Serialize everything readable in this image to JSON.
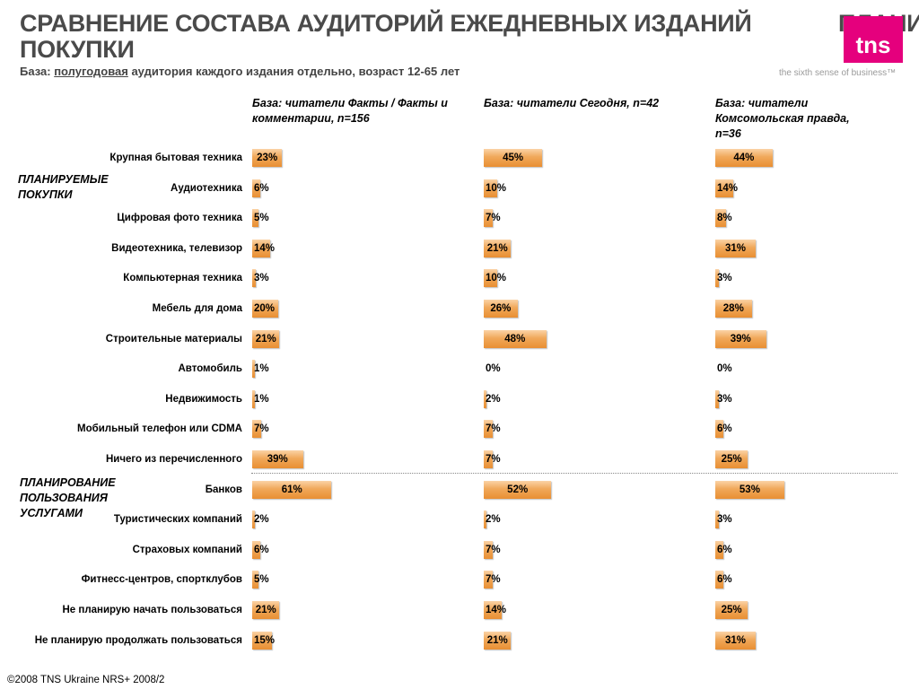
{
  "header": {
    "title_line1": "СРАВНЕНИЕ СОСТАВА АУДИТОРИЙ ЕЖЕДНЕВНЫХ ИЗДАНИЙ",
    "title_line1_right": "ПЛАНИ",
    "title_line2": "ПОКУПКИ",
    "subtitle_prefix": "База: ",
    "subtitle_underlined": "полугодовая",
    "subtitle_rest": " аудитория каждого издания отдельно, возраст 12-65 лет",
    "logo_text": "tns",
    "tagline": "the sixth sense of business™"
  },
  "groups": {
    "planned_purchases": "ПЛАНИРУЕМЫЕ ПОКУПКИ",
    "planned_services": "ПЛАНИРОВАНИЕ ПОЛЬЗОВАНИЯ УСЛУГАМИ"
  },
  "footer": "©2008 TNS Ukraine  NRS+ 2008/2",
  "colors": {
    "bar": "#f0a85a",
    "logo": "#e5007d",
    "title": "#4a4a4a"
  },
  "chart_data": {
    "type": "bar",
    "orientation": "horizontal",
    "categories": [
      "Крупная бытовая техника",
      "Аудиотехника",
      "Цифровая фото техника",
      "Видеотехника, телевизор",
      "Компьютерная техника",
      "Мебель для дома",
      "Строительные материалы",
      "Автомобиль",
      "Недвижимость",
      "Мобильный телефон или CDMA",
      "Ничего из перечисленного",
      "Банков",
      "Туристических компаний",
      "Страховых компаний",
      "Фитнесс-центров, спортклубов",
      "Не планирую начать пользоваться",
      "Не планирую продолжать пользоваться"
    ],
    "series": [
      {
        "name": "База: читатели Факты / Факты и комментарии, n=156",
        "values": [
          23,
          6,
          5,
          14,
          3,
          20,
          21,
          1,
          1,
          7,
          39,
          61,
          2,
          6,
          5,
          21,
          15
        ]
      },
      {
        "name": "База: читатели Сегодня, n=42",
        "values": [
          45,
          10,
          7,
          21,
          10,
          26,
          48,
          0,
          2,
          7,
          7,
          52,
          2,
          7,
          7,
          14,
          21
        ]
      },
      {
        "name": "База: читатели Комсомольская правда, n=36",
        "values": [
          44,
          14,
          8,
          31,
          3,
          28,
          39,
          0,
          3,
          6,
          25,
          53,
          3,
          6,
          6,
          25,
          31
        ]
      }
    ],
    "value_suffix": "%"
  }
}
